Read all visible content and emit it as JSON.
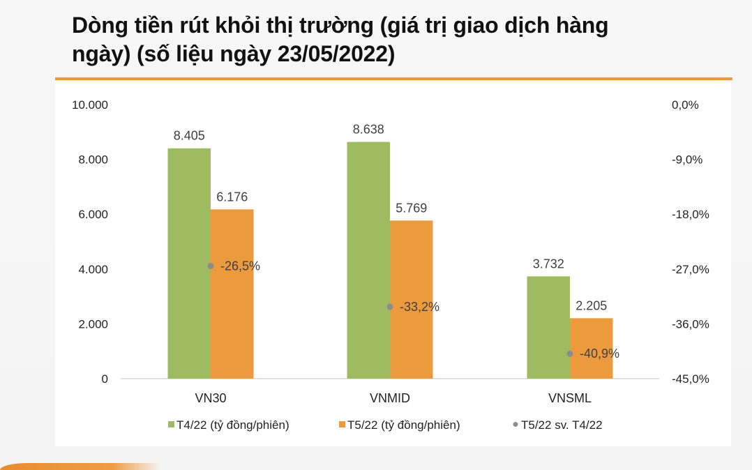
{
  "title": {
    "line1": "Dòng tiền rút khỏi thị trường (giá trị giao dịch hàng",
    "line2": "ngày) (số liệu ngày 23/05/2022)"
  },
  "colors": {
    "accent_rule": "#ec9a3e",
    "t4_bar": "#9fbb62",
    "t5_bar": "#ec9a3e",
    "marker": "#8c8c8c",
    "axis_line": "#d9d9d9"
  },
  "chart_data": {
    "type": "bar",
    "title": "Dòng tiền rút khỏi thị trường (giá trị giao dịch hàng ngày) (số liệu ngày 23/05/2022)",
    "categories": [
      "VN30",
      "VNMID",
      "VNSML"
    ],
    "series": [
      {
        "name": "T4/22 (tỷ đồng/phiên)",
        "type": "bar",
        "axis": "left",
        "color": "#9fbb62",
        "values": [
          8405,
          8638,
          3732
        ],
        "labels": [
          "8.405",
          "8.638",
          "3.732"
        ]
      },
      {
        "name": "T5/22 (tỷ đồng/phiên)",
        "type": "bar",
        "axis": "left",
        "color": "#ec9a3e",
        "values": [
          6176,
          5769,
          2205
        ],
        "labels": [
          "6.176",
          "5.769",
          "2.205"
        ]
      },
      {
        "name": "T5/22 sv. T4/22",
        "type": "scatter",
        "axis": "right",
        "color": "#8c8c8c",
        "values": [
          -26.5,
          -33.2,
          -40.9
        ],
        "labels": [
          "-26,5%",
          "-33,2%",
          "-40,9%"
        ]
      }
    ],
    "left_axis": {
      "ylim": [
        0,
        10000
      ],
      "ticks": [
        0,
        2000,
        4000,
        6000,
        8000,
        10000
      ],
      "tick_labels": [
        "0",
        "2.000",
        "4.000",
        "6.000",
        "8.000",
        "10.000"
      ]
    },
    "right_axis": {
      "ylim": [
        -45,
        0
      ],
      "ticks": [
        0,
        -9,
        -18,
        -27,
        -36,
        -45
      ],
      "tick_labels": [
        "0,0%",
        "-9,0%",
        "-18,0%",
        "-27,0%",
        "-36,0%",
        "-45,0%"
      ]
    },
    "xlabel": "",
    "ylabel": "",
    "grid": false,
    "legend_position": "bottom"
  },
  "legend": [
    {
      "label": "T4/22 (tỷ đồng/phiên)",
      "shape": "square",
      "color": "#9fbb62"
    },
    {
      "label": "T5/22 (tỷ đồng/phiên)",
      "shape": "square",
      "color": "#ec9a3e"
    },
    {
      "label": "T5/22 sv. T4/22",
      "shape": "circle",
      "color": "#8c8c8c"
    }
  ]
}
